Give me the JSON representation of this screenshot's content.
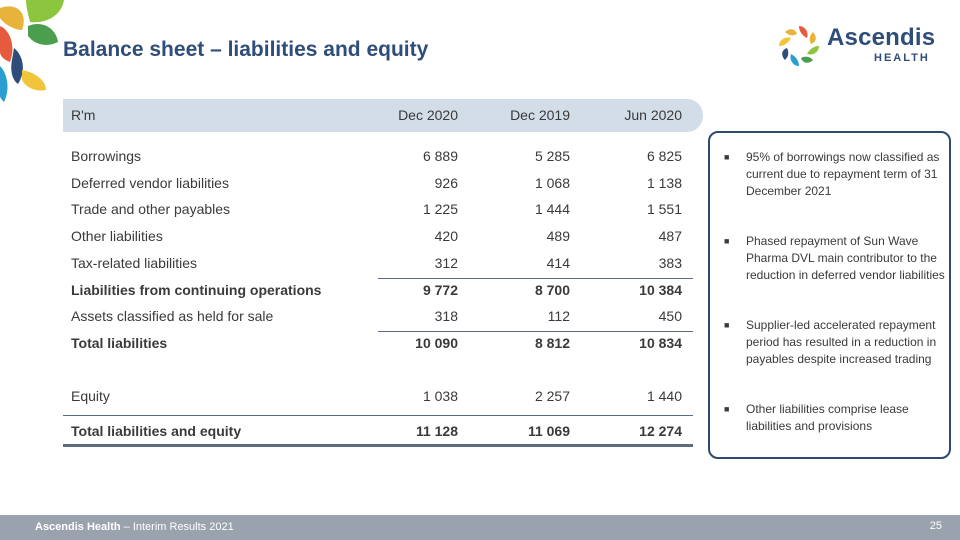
{
  "title": "Balance sheet – liabilities and equity",
  "brand": {
    "name": "Ascendis",
    "sub": "HEALTH"
  },
  "table": {
    "columns": [
      "R'm",
      "Dec 2020",
      "Dec 2019",
      "Jun 2020"
    ],
    "rows": [
      {
        "label": "Borrowings",
        "values": [
          "6 889",
          "5 285",
          "6 825"
        ],
        "bold": false
      },
      {
        "label": "Deferred vendor liabilities",
        "values": [
          "926",
          "1 068",
          "1 138"
        ],
        "bold": false
      },
      {
        "label": "Trade and other payables",
        "values": [
          "1 225",
          "1 444",
          "1 551"
        ],
        "bold": false
      },
      {
        "label": "Other liabilities",
        "values": [
          "420",
          "489",
          "487"
        ],
        "bold": false
      },
      {
        "label": "Tax-related liabilities",
        "values": [
          "312",
          "414",
          "383"
        ],
        "bold": false
      },
      {
        "label": "Liabilities from continuing operations",
        "values": [
          "9 772",
          "8 700",
          "10 384"
        ],
        "bold": true
      },
      {
        "label": "Assets classified as held for sale",
        "values": [
          "318",
          "112",
          "450"
        ],
        "bold": false
      },
      {
        "label": "Total liabilities",
        "values": [
          "10 090",
          "8 812",
          "10 834"
        ],
        "bold": true
      },
      {
        "label": "Equity",
        "values": [
          "1 038",
          "2 257",
          "1 440"
        ],
        "bold": false
      },
      {
        "label": "Total liabilities and equity",
        "values": [
          "11 128",
          "11 069",
          "12 274"
        ],
        "bold": true
      }
    ]
  },
  "notes": [
    "95% of borrowings now classified as current due to repayment term of 31 December 2021",
    "Phased repayment of Sun Wave Pharma DVL main contributor to the reduction in deferred vendor liabilities",
    "Supplier-led accelerated repayment period has resulted in a reduction in payables despite increased trading",
    "Other liabilities comprise lease liabilities and provisions"
  ],
  "footer": {
    "company": "Ascendis Health",
    "suffix": " – Interim Results 2021",
    "page": "25"
  },
  "colors": {
    "title": "#2f4d7a",
    "header_band": "#d3dde8",
    "footer": "#9aa3ad",
    "note_border": "#2e4a6e"
  }
}
